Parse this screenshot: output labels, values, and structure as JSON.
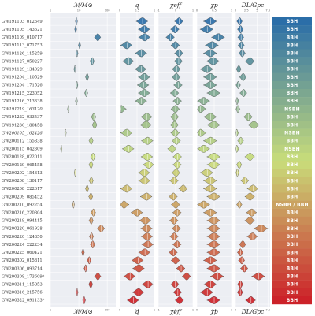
{
  "chart_data": {
    "type": "violin",
    "panels": [
      {
        "key": "mc",
        "header": "ℳ/M⊙",
        "footer": "ℳ/M⊙",
        "log": true,
        "xlim": [
          1,
          200
        ],
        "ticks": [
          {
            "v": 1,
            "l": "1"
          },
          {
            "v": 10,
            "l": "10"
          },
          {
            "v": 100,
            "l": "100"
          }
        ]
      },
      {
        "key": "q",
        "header": "q",
        "footer": "q",
        "log": false,
        "xlim": [
          0,
          1
        ],
        "ticks": [
          {
            "v": 0,
            "l": "0"
          },
          {
            "v": 0.5,
            "l": "0.5"
          },
          {
            "v": 1,
            "l": "1"
          }
        ]
      },
      {
        "key": "chieff",
        "header": "χeff",
        "footer": "χeff",
        "log": false,
        "xlim": [
          -1,
          1
        ],
        "ticks": [
          {
            "v": -1,
            "l": "-1"
          },
          {
            "v": 0,
            "l": "0"
          },
          {
            "v": 1,
            "l": "1"
          }
        ]
      },
      {
        "key": "chip",
        "header": "χp",
        "footer": "χp",
        "log": false,
        "xlim": [
          0,
          1
        ],
        "ticks": [
          {
            "v": 0,
            "l": "0"
          },
          {
            "v": 0.5,
            "l": "0.5"
          },
          {
            "v": 1,
            "l": "1"
          }
        ]
      },
      {
        "key": "dl",
        "header": "DL/Gpc",
        "footer": "DL/Gpc",
        "log": false,
        "xlim": [
          0,
          8
        ],
        "ticks": [
          {
            "v": 0,
            "l": "0"
          },
          {
            "v": 2.5,
            "l": "2.5"
          },
          {
            "v": 5,
            "l": "5"
          },
          {
            "v": 7.5,
            "l": "7.5"
          }
        ]
      }
    ],
    "events": [
      {
        "name": "GW191103_012549",
        "italic": false,
        "cls": "BBH",
        "mc": 8.3,
        "q": 0.66,
        "chieff": 0.21,
        "chip": 0.4,
        "dl": 1.0
      },
      {
        "name": "GW191105_143521",
        "italic": false,
        "cls": "BBH",
        "mc": 7.8,
        "q": 0.72,
        "chieff": -0.02,
        "chip": 0.3,
        "dl": 1.2
      },
      {
        "name": "GW191109_010717",
        "italic": false,
        "cls": "BBH",
        "mc": 47,
        "q": 0.73,
        "chieff": -0.29,
        "chip": 0.63,
        "dl": 1.3
      },
      {
        "name": "GW191113_071753",
        "italic": false,
        "cls": "BBH",
        "mc": 10.7,
        "q": 0.21,
        "chieff": 0.0,
        "chip": 0.45,
        "dl": 1.4
      },
      {
        "name": "GW191126_115259",
        "italic": false,
        "cls": "BBH",
        "mc": 8.7,
        "q": 0.63,
        "chieff": 0.21,
        "chip": 0.4,
        "dl": 1.6
      },
      {
        "name": "GW191127_050227",
        "italic": false,
        "cls": "BBH",
        "mc": 29.9,
        "q": 0.26,
        "chieff": 0.18,
        "chip": 0.48,
        "dl": 3.4
      },
      {
        "name": "GW191129_134029",
        "italic": false,
        "cls": "BBH",
        "mc": 7.3,
        "q": 0.62,
        "chieff": 0.06,
        "chip": 0.3,
        "dl": 0.79
      },
      {
        "name": "GW191204_110529",
        "italic": false,
        "cls": "BBH",
        "mc": 19.8,
        "q": 0.72,
        "chieff": 0.05,
        "chip": 0.4,
        "dl": 1.8
      },
      {
        "name": "GW191204_171526",
        "italic": false,
        "cls": "BBH",
        "mc": 8.6,
        "q": 0.69,
        "chieff": 0.16,
        "chip": 0.4,
        "dl": 0.65
      },
      {
        "name": "GW191215_223052",
        "italic": false,
        "cls": "BBH",
        "mc": 18.4,
        "q": 0.72,
        "chieff": -0.04,
        "chip": 0.5,
        "dl": 1.9
      },
      {
        "name": "GW191216_213338",
        "italic": false,
        "cls": "BBH",
        "mc": 8.3,
        "q": 0.63,
        "chieff": 0.12,
        "chip": 0.2,
        "dl": 0.34
      },
      {
        "name": "GW191219_163120",
        "italic": true,
        "cls": "NSBH",
        "mc": 4.3,
        "q": 0.04,
        "chieff": 0.0,
        "chip": 0.1,
        "dl": 0.55
      },
      {
        "name": "GW191222_033537",
        "italic": false,
        "cls": "BBH",
        "mc": 33.8,
        "q": 0.79,
        "chieff": -0.04,
        "chip": 0.4,
        "dl": 3.0
      },
      {
        "name": "GW191230_180458",
        "italic": false,
        "cls": "BBH",
        "mc": 36.5,
        "q": 0.77,
        "chieff": -0.05,
        "chip": 0.5,
        "dl": 4.3
      },
      {
        "name": "GW200105_162426",
        "italic": true,
        "cls": "NSBH",
        "mc": 3.42,
        "q": 0.21,
        "chieff": -0.01,
        "chip": 0.1,
        "dl": 0.27
      },
      {
        "name": "GW200112_155838",
        "italic": false,
        "cls": "BBH",
        "mc": 27.4,
        "q": 0.81,
        "chieff": 0.06,
        "chip": 0.4,
        "dl": 1.25
      },
      {
        "name": "GW200115_042309",
        "italic": false,
        "cls": "NSBH",
        "mc": 2.43,
        "q": 0.26,
        "chieff": -0.19,
        "chip": 0.2,
        "dl": 0.29
      },
      {
        "name": "GW200128_022011",
        "italic": false,
        "cls": "BBH",
        "mc": 32.0,
        "q": 0.8,
        "chieff": 0.12,
        "chip": 0.5,
        "dl": 3.4
      },
      {
        "name": "GW200129_065458",
        "italic": false,
        "cls": "BBH",
        "mc": 27.2,
        "q": 0.85,
        "chieff": 0.11,
        "chip": 0.5,
        "dl": 0.9
      },
      {
        "name": "GW200202_154313",
        "italic": false,
        "cls": "BBH",
        "mc": 7.5,
        "q": 0.72,
        "chieff": 0.04,
        "chip": 0.3,
        "dl": 0.41
      },
      {
        "name": "GW200208_130117",
        "italic": false,
        "cls": "BBH",
        "mc": 27.7,
        "q": 0.73,
        "chieff": -0.07,
        "chip": 0.4,
        "dl": 2.23
      },
      {
        "name": "GW200208_222617",
        "italic": false,
        "cls": "BBH",
        "mc": 19.8,
        "q": 0.21,
        "chieff": 0.45,
        "chip": 0.4,
        "dl": 4.1
      },
      {
        "name": "GW200209_085452",
        "italic": false,
        "cls": "BBH",
        "mc": 26.7,
        "q": 0.78,
        "chieff": -0.12,
        "chip": 0.5,
        "dl": 3.4
      },
      {
        "name": "GW200210_092254",
        "italic": false,
        "cls": "NSBH / BBH",
        "mc": 6.56,
        "q": 0.12,
        "chieff": 0.02,
        "chip": 0.2,
        "dl": 0.94
      },
      {
        "name": "GW200216_220804",
        "italic": false,
        "cls": "BBH",
        "mc": 32.9,
        "q": 0.51,
        "chieff": 0.1,
        "chip": 0.4,
        "dl": 3.8
      },
      {
        "name": "GW200219_094415",
        "italic": false,
        "cls": "BBH",
        "mc": 27.6,
        "q": 0.75,
        "chieff": -0.08,
        "chip": 0.5,
        "dl": 3.4
      },
      {
        "name": "GW200220_061928",
        "italic": false,
        "cls": "BBH",
        "mc": 62,
        "q": 0.79,
        "chieff": 0.06,
        "chip": 0.5,
        "dl": 6.0
      },
      {
        "name": "GW200220_124850",
        "italic": false,
        "cls": "BBH",
        "mc": 28.2,
        "q": 0.8,
        "chieff": -0.07,
        "chip": 0.5,
        "dl": 4.0
      },
      {
        "name": "GW200224_222234",
        "italic": false,
        "cls": "BBH",
        "mc": 31.1,
        "q": 0.82,
        "chieff": 0.1,
        "chip": 0.5,
        "dl": 1.71
      },
      {
        "name": "GW200225_060421",
        "italic": false,
        "cls": "BBH",
        "mc": 14.2,
        "q": 0.73,
        "chieff": -0.12,
        "chip": 0.5,
        "dl": 1.15
      },
      {
        "name": "GW200302_015811",
        "italic": false,
        "cls": "BBH",
        "mc": 23.4,
        "q": 0.53,
        "chieff": 0.01,
        "chip": 0.4,
        "dl": 1.48
      },
      {
        "name": "GW200306_093714",
        "italic": false,
        "cls": "BBH",
        "mc": 17.5,
        "q": 0.56,
        "chieff": 0.32,
        "chip": 0.5,
        "dl": 2.1
      },
      {
        "name": "GW200308_173609*",
        "italic": false,
        "cls": "BBH",
        "mc": 47.4,
        "q": 0.3,
        "chieff": 0.65,
        "chip": 0.6,
        "dl": 5.4
      },
      {
        "name": "GW200311_115853",
        "italic": false,
        "cls": "BBH",
        "mc": 26.6,
        "q": 0.82,
        "chieff": -0.02,
        "chip": 0.4,
        "dl": 1.17
      },
      {
        "name": "GW200316_215756",
        "italic": false,
        "cls": "BBH",
        "mc": 8.75,
        "q": 0.55,
        "chieff": 0.13,
        "chip": 0.3,
        "dl": 1.12
      },
      {
        "name": "GW200322_091133*",
        "italic": false,
        "cls": "BBH",
        "mc": 15.5,
        "q": 0.4,
        "chieff": 0.24,
        "chip": 0.5,
        "dl": 3.6
      }
    ],
    "palette_top": "#2b6ea8",
    "palette_mid": "#c9dd7a",
    "palette_bottom": "#cc2229"
  }
}
